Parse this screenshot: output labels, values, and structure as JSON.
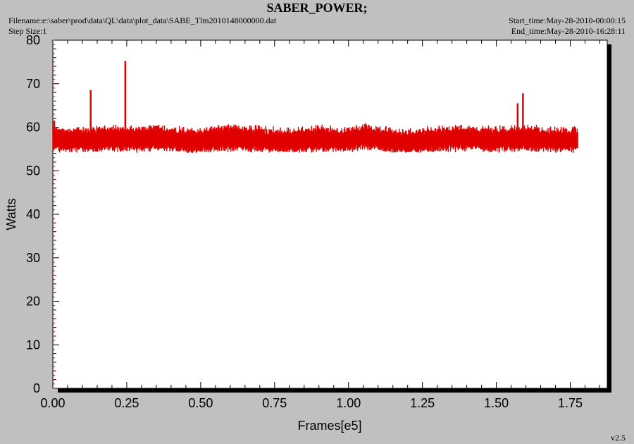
{
  "header": {
    "title": "SABER_POWER;",
    "filename": "Filename:e:\\saber\\prod\\data\\QL\\data\\plot_data\\SABE_Tlm2010148000000.dat",
    "step_size": "Step Size:1",
    "start_time": "Start_time:May-28-2010-00:00:15",
    "end_time": "End_time:May-28-2010-16:28:11",
    "version": "v2.5"
  },
  "colors": {
    "background": "#c0c0c0",
    "plot_area": "#ffffff",
    "series": "#e00000",
    "shadow": "#000000"
  },
  "chart_data": {
    "type": "line",
    "xlabel": "Frames[e5]",
    "ylabel": "Watts",
    "xlim": [
      0,
      1.875
    ],
    "ylim": [
      0,
      80
    ],
    "x_ticks": [
      "0.00",
      "0.25",
      "0.50",
      "0.75",
      "1.00",
      "1.25",
      "1.50",
      "1.75"
    ],
    "y_ticks": [
      "0",
      "10",
      "20",
      "30",
      "40",
      "50",
      "60",
      "70",
      "80"
    ],
    "grid": false,
    "series": [
      {
        "x_start": 0.0,
        "x_end": 1.775,
        "band_center": [
          [
            0.0,
            57.3
          ],
          [
            0.1,
            57.0
          ],
          [
            0.2,
            57.4
          ],
          [
            0.3,
            57.2
          ],
          [
            0.35,
            57.6
          ],
          [
            0.45,
            56.8
          ],
          [
            0.5,
            56.9
          ],
          [
            0.6,
            57.6
          ],
          [
            0.7,
            57.2
          ],
          [
            0.8,
            56.7
          ],
          [
            0.9,
            57.3
          ],
          [
            1.0,
            57.0
          ],
          [
            1.05,
            57.9
          ],
          [
            1.1,
            57.2
          ],
          [
            1.2,
            56.5
          ],
          [
            1.3,
            57.2
          ],
          [
            1.4,
            57.6
          ],
          [
            1.5,
            57.1
          ],
          [
            1.6,
            57.4
          ],
          [
            1.7,
            56.9
          ],
          [
            1.775,
            57.2
          ]
        ],
        "band_low": 54.5,
        "band_high": 60.5,
        "spikes": [
          [
            0.005,
            61.5
          ],
          [
            0.128,
            68.5
          ],
          [
            0.245,
            75.2
          ],
          [
            1.572,
            65.5
          ],
          [
            1.59,
            67.8
          ]
        ]
      }
    ]
  }
}
